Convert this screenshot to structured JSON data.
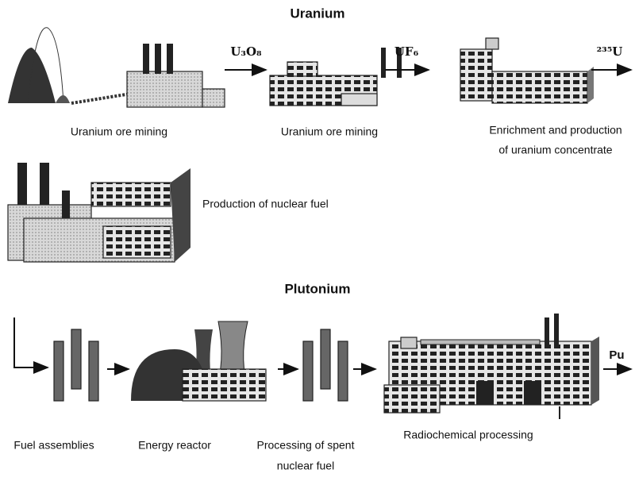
{
  "uranium": {
    "title": "Uranium",
    "products": [
      "U₃O₈",
      "UF₆",
      "²³⁵U"
    ],
    "steps": [
      {
        "lines": [
          "Uranium ore mining"
        ]
      },
      {
        "lines": [
          "Uranium ore mining"
        ]
      },
      {
        "lines": [
          "Enrichment and production",
          "of uranium concentrate"
        ]
      },
      {
        "lines": [
          "Production of nuclear fuel"
        ]
      }
    ]
  },
  "plutonium": {
    "title": "Plutonium",
    "product": "Pu",
    "steps": [
      {
        "lines": [
          "Fuel assemblies"
        ]
      },
      {
        "lines": [
          "Energy reactor"
        ]
      },
      {
        "lines": [
          "Processing of spent",
          "nuclear fuel"
        ]
      },
      {
        "lines": [
          "Radiochemical processing"
        ]
      }
    ]
  }
}
